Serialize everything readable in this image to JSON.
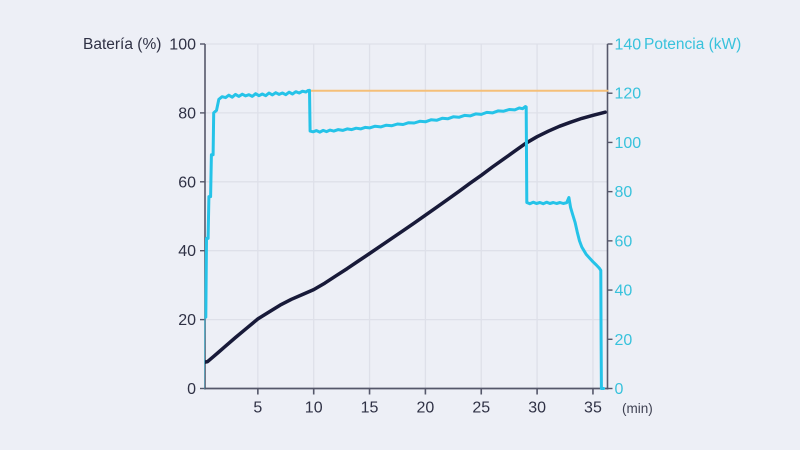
{
  "chart": {
    "left_axis_label": "Batería (%)",
    "right_axis_label": "Potencia (kW)",
    "x_axis_unit": "(min)"
  },
  "colors": {
    "background": "#EDEFF6",
    "battery_line": "#181A39",
    "power_line": "#25C3E8",
    "max_power_line": "#F5BF78",
    "grid": "#DEE0E9",
    "axis": "#55576A",
    "left_text": "#2F3145",
    "right_text": "#38C2DC"
  },
  "chart_data": {
    "type": "line",
    "title": "",
    "xlabel": "(min)",
    "x_range": [
      0,
      36.3
    ],
    "x_ticks": [
      5,
      10,
      15,
      20,
      25,
      30,
      35
    ],
    "grid": true,
    "left_axis": {
      "label": "Batería (%)",
      "range": [
        0,
        100
      ],
      "ticks": [
        0,
        20,
        40,
        60,
        80,
        100
      ],
      "gridline_ticks": [
        20,
        40,
        60,
        80,
        100
      ]
    },
    "right_axis": {
      "label": "Potencia (kW)",
      "range": [
        0,
        140
      ],
      "ticks": [
        0,
        20,
        40,
        60,
        80,
        100,
        120,
        140
      ]
    },
    "series": [
      {
        "name": "potencia_maxima",
        "axis": "right",
        "color": "#F5BF78",
        "width": 2,
        "points": [
          [
            9.62,
            121
          ],
          [
            36.3,
            121
          ]
        ]
      },
      {
        "name": "bateria",
        "axis": "left",
        "color": "#181A39",
        "width": 3.5,
        "points": [
          [
            0,
            7.5
          ],
          [
            0.5,
            7.8
          ],
          [
            1,
            9.2
          ],
          [
            1.5,
            10.6
          ],
          [
            2,
            12
          ],
          [
            3,
            14.8
          ],
          [
            4,
            17.5
          ],
          [
            5,
            20.2
          ],
          [
            6,
            22.2
          ],
          [
            7,
            24.2
          ],
          [
            8,
            25.9
          ],
          [
            9,
            27.3
          ],
          [
            10,
            28.7
          ],
          [
            11,
            30.6
          ],
          [
            12,
            32.7
          ],
          [
            13,
            34.8
          ],
          [
            14,
            37
          ],
          [
            15,
            39.2
          ],
          [
            16,
            41.4
          ],
          [
            17,
            43.6
          ],
          [
            18,
            45.8
          ],
          [
            19,
            48
          ],
          [
            20,
            50.3
          ],
          [
            21,
            52.6
          ],
          [
            22,
            54.9
          ],
          [
            23,
            57.2
          ],
          [
            24,
            59.6
          ],
          [
            25,
            61.9
          ],
          [
            26,
            64.3
          ],
          [
            27,
            66.6
          ],
          [
            28,
            68.9
          ],
          [
            29,
            71.2
          ],
          [
            30,
            73.1
          ],
          [
            31,
            74.7
          ],
          [
            32,
            76.1
          ],
          [
            33,
            77.3
          ],
          [
            34,
            78.4
          ],
          [
            35,
            79.3
          ],
          [
            36.1,
            80.2
          ]
        ]
      },
      {
        "name": "potencia",
        "axis": "right",
        "color": "#25C3E8",
        "width": 3,
        "points": [
          [
            0,
            0
          ],
          [
            0.12,
            0
          ],
          [
            0.16,
            29
          ],
          [
            0.34,
            29
          ],
          [
            0.4,
            61
          ],
          [
            0.55,
            61
          ],
          [
            0.62,
            78
          ],
          [
            0.77,
            78
          ],
          [
            0.84,
            95
          ],
          [
            0.99,
            95
          ],
          [
            1.05,
            112
          ],
          [
            1.3,
            113
          ],
          [
            1.5,
            117.5
          ],
          [
            1.8,
            118.6
          ],
          [
            2.1,
            118.2
          ],
          [
            2.4,
            119.2
          ],
          [
            2.7,
            118.4
          ],
          [
            3,
            119.5
          ],
          [
            3.3,
            118.7
          ],
          [
            3.6,
            119.6
          ],
          [
            3.9,
            118.9
          ],
          [
            4.2,
            119.4
          ],
          [
            4.5,
            118.7
          ],
          [
            4.8,
            119.8
          ],
          [
            5.1,
            119
          ],
          [
            5.4,
            119.7
          ],
          [
            5.7,
            119
          ],
          [
            6,
            120.1
          ],
          [
            6.3,
            119.3
          ],
          [
            6.6,
            120.2
          ],
          [
            6.9,
            119.5
          ],
          [
            7.2,
            120.1
          ],
          [
            7.5,
            119.4
          ],
          [
            7.8,
            120.4
          ],
          [
            8.1,
            119.7
          ],
          [
            8.4,
            120.6
          ],
          [
            8.7,
            120.1
          ],
          [
            9,
            120.8
          ],
          [
            9.3,
            120.5
          ],
          [
            9.5,
            121.1
          ],
          [
            9.62,
            121.2
          ],
          [
            9.68,
            104.6
          ],
          [
            9.95,
            104.3
          ],
          [
            10.25,
            104.8
          ],
          [
            10.55,
            104.2
          ],
          [
            10.85,
            104.9
          ],
          [
            11.15,
            104.4
          ],
          [
            11.45,
            105
          ],
          [
            11.8,
            104.6
          ],
          [
            12.2,
            105.2
          ],
          [
            12.6,
            104.9
          ],
          [
            13,
            105.5
          ],
          [
            13.4,
            105.2
          ],
          [
            13.8,
            105.8
          ],
          [
            14.2,
            105.5
          ],
          [
            14.6,
            106.1
          ],
          [
            15,
            105.9
          ],
          [
            15.5,
            106.6
          ],
          [
            16,
            106.3
          ],
          [
            16.5,
            107
          ],
          [
            17,
            106.8
          ],
          [
            17.5,
            107.5
          ],
          [
            18,
            107.3
          ],
          [
            18.5,
            108
          ],
          [
            19,
            107.9
          ],
          [
            19.5,
            108.6
          ],
          [
            20,
            108.4
          ],
          [
            20.5,
            109.2
          ],
          [
            21,
            109
          ],
          [
            21.5,
            109.8
          ],
          [
            22,
            109.6
          ],
          [
            22.5,
            110.4
          ],
          [
            23,
            110.2
          ],
          [
            23.5,
            111
          ],
          [
            24,
            110.8
          ],
          [
            24.5,
            111.6
          ],
          [
            25,
            111.4
          ],
          [
            25.5,
            112.2
          ],
          [
            26,
            112
          ],
          [
            26.5,
            112.8
          ],
          [
            27,
            112.7
          ],
          [
            27.5,
            113.4
          ],
          [
            28,
            113.2
          ],
          [
            28.4,
            114
          ],
          [
            28.7,
            113.7
          ],
          [
            28.95,
            114.6
          ],
          [
            29.02,
            114.4
          ],
          [
            29.08,
            75.6
          ],
          [
            29.35,
            75.1
          ],
          [
            29.65,
            75.7
          ],
          [
            29.95,
            75.2
          ],
          [
            30.25,
            75.6
          ],
          [
            30.55,
            75.1
          ],
          [
            30.85,
            75.7
          ],
          [
            31.15,
            75.2
          ],
          [
            31.45,
            75.6
          ],
          [
            31.75,
            75.2
          ],
          [
            32.05,
            75.6
          ],
          [
            32.35,
            75.2
          ],
          [
            32.65,
            75.5
          ],
          [
            32.85,
            77.6
          ],
          [
            33,
            73.5
          ],
          [
            33.2,
            70.5
          ],
          [
            33.4,
            67.5
          ],
          [
            33.6,
            63.5
          ],
          [
            33.8,
            60
          ],
          [
            34,
            57.5
          ],
          [
            34.2,
            56
          ],
          [
            34.4,
            54.5
          ],
          [
            34.7,
            53
          ],
          [
            35,
            51.5
          ],
          [
            35.3,
            50.2
          ],
          [
            35.55,
            49
          ],
          [
            35.7,
            48
          ],
          [
            35.73,
            20
          ],
          [
            35.76,
            0
          ],
          [
            35.95,
            0
          ]
        ]
      }
    ]
  }
}
